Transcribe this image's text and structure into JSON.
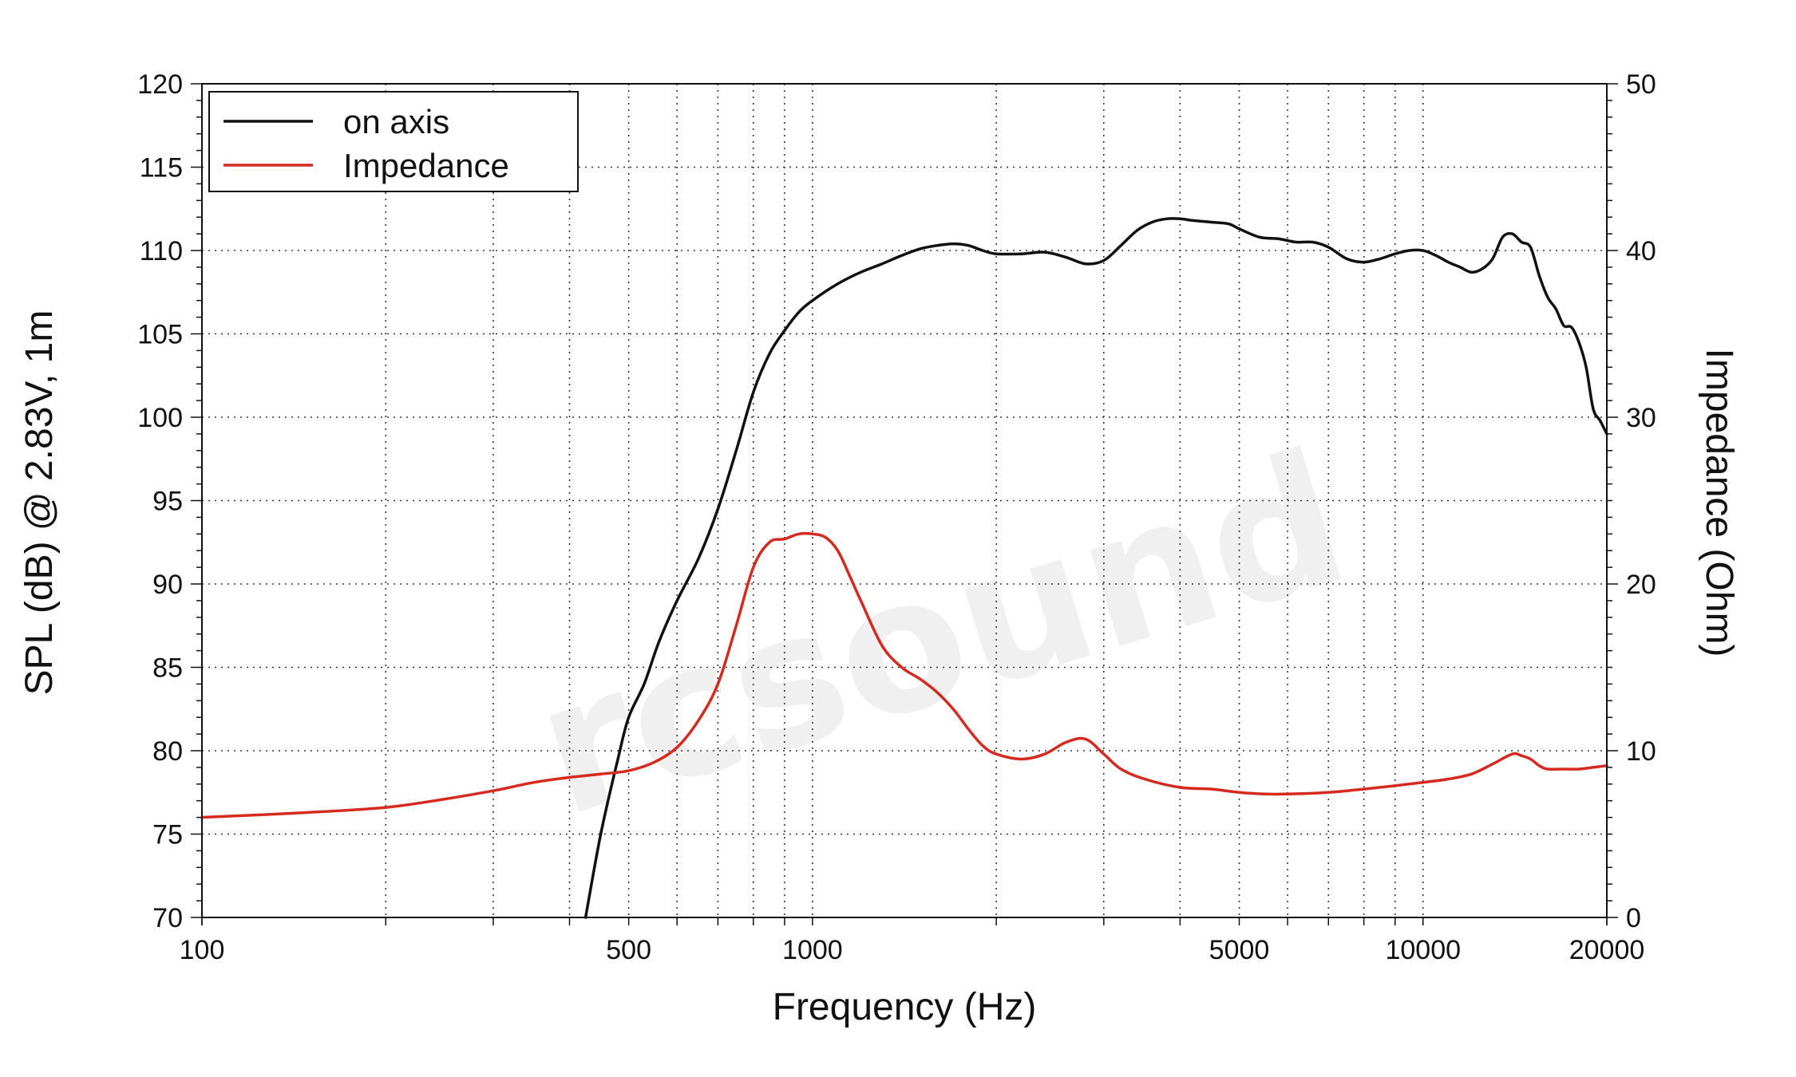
{
  "watermark": "rcsound",
  "chart_data": {
    "type": "line",
    "xlabel": "Frequency (Hz)",
    "ylabel": "SPL (dB) @ 2.83V, 1m",
    "y2label": "Impedance (Ohm)",
    "x_scale": "log",
    "xlim": [
      100,
      20000
    ],
    "ylim": [
      70,
      120
    ],
    "y2lim": [
      0,
      50
    ],
    "x_ticks": [
      100,
      500,
      1000,
      5000,
      10000,
      20000
    ],
    "x_tick_labels": [
      "100",
      "500",
      "1000",
      "5000",
      "10000",
      "20000"
    ],
    "y_ticks": [
      70,
      75,
      80,
      85,
      90,
      95,
      100,
      105,
      110,
      115,
      120
    ],
    "y_tick_labels": [
      "70",
      "75",
      "80",
      "85",
      "90",
      "95",
      "100",
      "105",
      "110",
      "115",
      "120"
    ],
    "y2_ticks": [
      0,
      10,
      20,
      30,
      40,
      50
    ],
    "y2_tick_labels": [
      "0",
      "10",
      "20",
      "30",
      "40",
      "50"
    ],
    "grid": true,
    "legend_position": "top-left",
    "series": [
      {
        "name": "on axis",
        "color": "#111111",
        "axis": "left",
        "x": [
          425,
          450,
          480,
          500,
          530,
          560,
          600,
          650,
          700,
          750,
          800,
          850,
          900,
          950,
          1000,
          1100,
          1200,
          1300,
          1400,
          1500,
          1600,
          1700,
          1800,
          1900,
          2000,
          2200,
          2400,
          2600,
          2800,
          3000,
          3200,
          3400,
          3600,
          3800,
          4000,
          4200,
          4500,
          4800,
          5000,
          5400,
          5800,
          6200,
          6600,
          7000,
          7500,
          8000,
          8500,
          9000,
          9500,
          10000,
          10500,
          11000,
          11500,
          12000,
          12500,
          13000,
          13500,
          14000,
          14500,
          15000,
          15500,
          16000,
          16500,
          17000,
          17500,
          18000,
          18500,
          19000,
          19500,
          20000
        ],
        "values": [
          70,
          75,
          79.5,
          82,
          84,
          86.5,
          89,
          91.5,
          94.5,
          98,
          101.5,
          103.8,
          105.2,
          106.3,
          107,
          108,
          108.7,
          109.2,
          109.7,
          110.1,
          110.3,
          110.4,
          110.3,
          110,
          109.8,
          109.8,
          109.9,
          109.6,
          109.2,
          109.4,
          110.3,
          111.2,
          111.7,
          111.9,
          111.9,
          111.8,
          111.7,
          111.6,
          111.3,
          110.8,
          110.7,
          110.5,
          110.5,
          110.2,
          109.5,
          109.3,
          109.5,
          109.8,
          110,
          110,
          109.7,
          109.3,
          109,
          108.7,
          108.9,
          109.5,
          110.8,
          111,
          110.5,
          110.2,
          108.5,
          107.2,
          106.5,
          105.5,
          105.4,
          104.5,
          103,
          100.5,
          99.8,
          99
        ]
      },
      {
        "name": "Impedance",
        "color": "#d62a1f",
        "axis": "right",
        "x": [
          100,
          150,
          200,
          250,
          300,
          350,
          400,
          450,
          500,
          550,
          600,
          650,
          700,
          750,
          800,
          850,
          900,
          950,
          1000,
          1050,
          1100,
          1150,
          1200,
          1300,
          1400,
          1500,
          1600,
          1700,
          1800,
          1900,
          2000,
          2200,
          2400,
          2600,
          2800,
          3000,
          3200,
          3500,
          4000,
          4500,
          5000,
          5500,
          6000,
          7000,
          8000,
          9000,
          10000,
          11000,
          12000,
          13000,
          14000,
          14500,
          15000,
          15500,
          16000,
          17000,
          18000,
          19000,
          20000
        ],
        "values": [
          6,
          6.3,
          6.6,
          7.1,
          7.6,
          8.1,
          8.4,
          8.6,
          8.8,
          9.3,
          10.2,
          11.8,
          14,
          17.5,
          21,
          22.5,
          22.7,
          23,
          23,
          22.8,
          22,
          20.5,
          19,
          16.3,
          15,
          14.3,
          13.5,
          12.5,
          11.3,
          10.3,
          9.8,
          9.5,
          9.8,
          10.5,
          10.7,
          9.8,
          8.9,
          8.3,
          7.8,
          7.7,
          7.5,
          7.4,
          7.4,
          7.5,
          7.7,
          7.9,
          8.1,
          8.3,
          8.6,
          9.2,
          9.8,
          9.7,
          9.5,
          9.1,
          8.9,
          8.9,
          8.9,
          9,
          9.1
        ]
      }
    ]
  }
}
